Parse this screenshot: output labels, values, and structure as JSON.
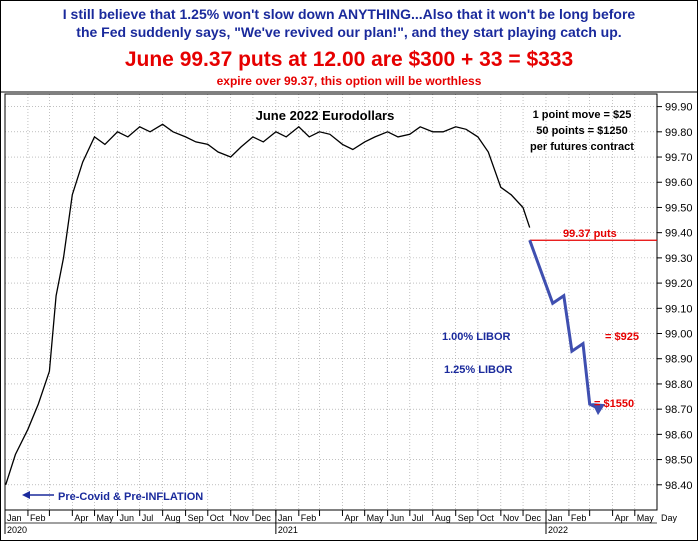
{
  "header": {
    "line1": "I still believe that 1.25% won't slow down ANYTHING...Also that it won't be long before",
    "line2": "the Fed suddenly says, \"We've revived our plan!\", and they start playing catch up.",
    "headline": "June 99.37 puts at 12.00 are $300 + 33 = $333",
    "subline": "expire over 99.37, this option will be worthless"
  },
  "colors": {
    "blue_text": "#1a2a9c",
    "red_text": "#e60000",
    "price_line": "#000000",
    "projection": "#3f4fb0",
    "grid": "#9a9a9a"
  },
  "chart_data": {
    "type": "line",
    "title": "June 2022 Eurodollars",
    "ylabel": "",
    "xlabel": "Day",
    "ylim": [
      98.3,
      99.95
    ],
    "y_ticks": [
      "99.90",
      "99.80",
      "99.70",
      "99.60",
      "99.50",
      "99.40",
      "99.30",
      "99.20",
      "99.10",
      "99.00",
      "98.90",
      "98.80",
      "98.70",
      "98.60",
      "98.50",
      "98.40"
    ],
    "x_month_labels": [
      "Jan",
      "Feb",
      "Apr",
      "May",
      "Jun",
      "Jul",
      "Aug",
      "Sep",
      "Oct",
      "Nov",
      "Dec",
      "Jan",
      "Feb",
      "Apr",
      "May",
      "Jun",
      "Jul",
      "Aug",
      "Sep",
      "Oct",
      "Nov",
      "Dec",
      "Jan",
      "Feb",
      "Apr",
      "May"
    ],
    "x_year_labels": [
      "2020",
      "2021",
      "2022"
    ],
    "grid": true,
    "series": [
      {
        "style": "price",
        "x": [
          "2020-01-02",
          "2020-01-15",
          "2020-02-01",
          "2020-02-15",
          "2020-03-01",
          "2020-03-10",
          "2020-03-20",
          "2020-04-01",
          "2020-04-15",
          "2020-05-01",
          "2020-05-15",
          "2020-06-01",
          "2020-06-15",
          "2020-07-01",
          "2020-07-15",
          "2020-08-01",
          "2020-08-15",
          "2020-09-01",
          "2020-09-15",
          "2020-10-01",
          "2020-10-15",
          "2020-11-01",
          "2020-11-15",
          "2020-12-01",
          "2020-12-15",
          "2021-01-01",
          "2021-01-15",
          "2021-02-01",
          "2021-02-15",
          "2021-03-01",
          "2021-03-15",
          "2021-04-01",
          "2021-04-15",
          "2021-05-01",
          "2021-05-15",
          "2021-06-01",
          "2021-06-15",
          "2021-07-01",
          "2021-07-15",
          "2021-08-01",
          "2021-08-15",
          "2021-09-01",
          "2021-09-15",
          "2021-10-01",
          "2021-10-15",
          "2021-11-01",
          "2021-11-15",
          "2021-12-01",
          "2021-12-10"
        ],
        "y": [
          98.4,
          98.52,
          98.62,
          98.72,
          98.85,
          99.15,
          99.3,
          99.55,
          99.68,
          99.78,
          99.75,
          99.8,
          99.78,
          99.82,
          99.8,
          99.83,
          99.8,
          99.78,
          99.76,
          99.75,
          99.72,
          99.7,
          99.74,
          99.78,
          99.76,
          99.8,
          99.78,
          99.82,
          99.78,
          99.8,
          99.79,
          99.75,
          99.73,
          99.76,
          99.78,
          99.8,
          99.78,
          99.79,
          99.82,
          99.8,
          99.8,
          99.82,
          99.81,
          99.78,
          99.72,
          99.58,
          99.55,
          99.5,
          99.42
        ]
      }
    ],
    "projection": {
      "x": [
        "2021-12-10",
        "2022-01-10",
        "2022-01-25",
        "2022-02-05",
        "2022-02-20",
        "2022-03-01",
        "2022-03-15"
      ],
      "y": [
        99.37,
        99.12,
        99.15,
        98.93,
        98.96,
        98.72,
        98.7
      ]
    },
    "annotations": [
      {
        "id": "note_move",
        "text": "1 point move = $25"
      },
      {
        "id": "note_50",
        "text": "50 points = $1250"
      },
      {
        "id": "note_contract",
        "text": "per futures contract"
      },
      {
        "id": "puts_label",
        "text": "99.37 puts"
      },
      {
        "id": "libor100",
        "text": "1.00% LIBOR"
      },
      {
        "id": "libor125",
        "text": "1.25% LIBOR"
      },
      {
        "id": "amt925",
        "text": "= $925"
      },
      {
        "id": "amt1550",
        "text": "= $1550"
      },
      {
        "id": "precovid",
        "text": "Pre-Covid & Pre-INFLATION"
      }
    ],
    "puts_level": 99.37
  }
}
